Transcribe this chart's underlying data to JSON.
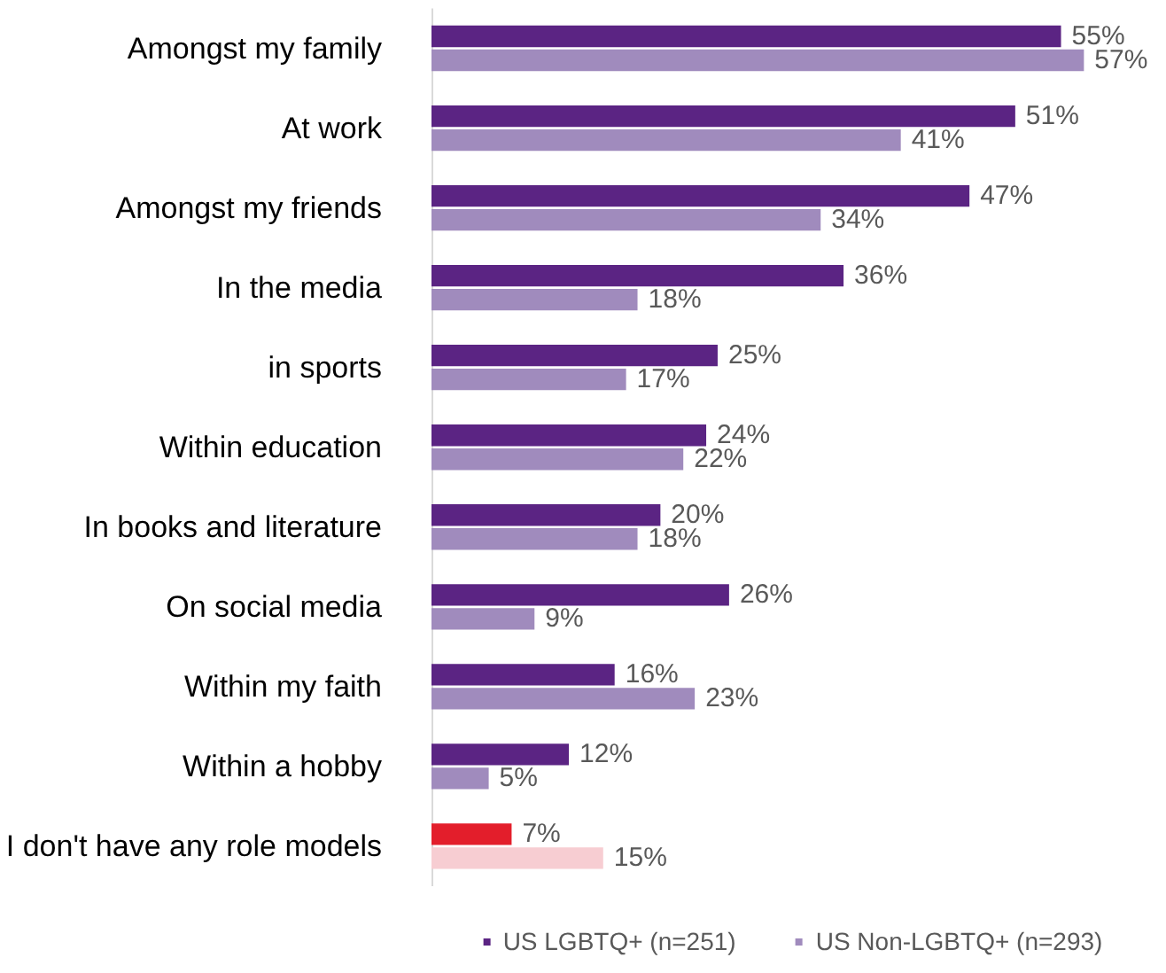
{
  "chart_data": {
    "type": "bar",
    "orientation": "horizontal",
    "categories": [
      "Amongst my family",
      "At work",
      "Amongst my friends",
      "In the media",
      "in sports",
      "Within education",
      "In books and literature",
      "On social media",
      "Within my faith",
      "Within a hobby",
      "I don't have any role models"
    ],
    "series": [
      {
        "name": "US LGBTQ+ (n=251)",
        "color": "#5b2483",
        "colors": [
          "#5b2483",
          "#5b2483",
          "#5b2483",
          "#5b2483",
          "#5b2483",
          "#5b2483",
          "#5b2483",
          "#5b2483",
          "#5b2483",
          "#5b2483",
          "#e31e2b"
        ],
        "values": [
          55,
          51,
          47,
          36,
          25,
          24,
          20,
          26,
          16,
          12,
          7
        ],
        "value_labels": [
          "55%",
          "51%",
          "47%",
          "36%",
          "25%",
          "24%",
          "20%",
          "26%",
          "16%",
          "12%",
          "7%"
        ]
      },
      {
        "name": "US Non-LGBTQ+ (n=293)",
        "color": "#a08bbd",
        "colors": [
          "#a08bbd",
          "#a08bbd",
          "#a08bbd",
          "#a08bbd",
          "#a08bbd",
          "#a08bbd",
          "#a08bbd",
          "#a08bbd",
          "#a08bbd",
          "#a08bbd",
          "#f7cdd2"
        ],
        "values": [
          57,
          41,
          34,
          18,
          17,
          22,
          18,
          9,
          23,
          5,
          15
        ],
        "value_labels": [
          "57%",
          "41%",
          "34%",
          "18%",
          "17%",
          "22%",
          "18%",
          "9%",
          "23%",
          "5%",
          "15%"
        ]
      }
    ],
    "tick_labels": "y",
    "grid": false,
    "legend": "bottom"
  }
}
